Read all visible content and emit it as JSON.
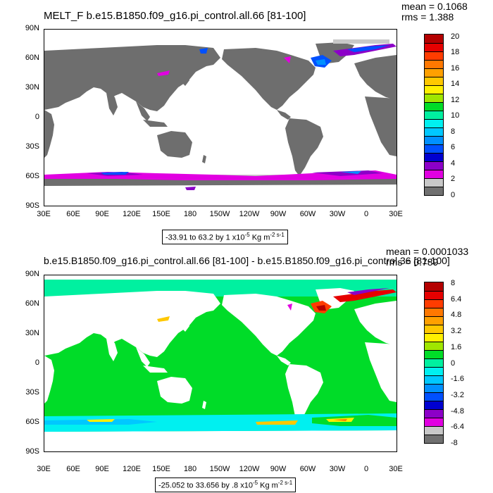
{
  "panel1": {
    "title": "MELT_F b.e15.B1850.f09_g16.pi_control.all.66 [81-100]",
    "mean": "mean = 0.1068",
    "rms": "rms = 1.388",
    "range_prefix": "-33.91 to 63.2 by 1 x10",
    "range_exp": "-5",
    "range_unit": " Kg m",
    "range_unit_exp": "-2 s-1",
    "colorbar_labels": [
      "20",
      "18",
      "16",
      "14",
      "12",
      "10",
      "8",
      "6",
      "4",
      "2",
      "0"
    ],
    "colors": [
      "#b40000",
      "#e60000",
      "#ff3c00",
      "#ff7800",
      "#ffa000",
      "#ffc800",
      "#fff000",
      "#a0e600",
      "#00dc28",
      "#00f0a0",
      "#00f0f0",
      "#00c8ff",
      "#0090ff",
      "#0050ff",
      "#0000d0",
      "#8c00c8",
      "#e100e1",
      "#c8c8c8",
      "#707070"
    ]
  },
  "panel2": {
    "title": "b.e15.B1850.f09_g16.pi_control.all.66 [81-100] - b.e15.B1850.f09_g16.pi_control.36 [81-100]",
    "mean": "mean = 0.0001033",
    "rms": "rms = 0.789",
    "range_prefix": "-25.052 to 33.656 by .8 x10",
    "range_exp": "-5",
    "range_unit": " Kg m",
    "range_unit_exp": "-2 s-1",
    "colorbar_labels": [
      "8",
      "6.4",
      "4.8",
      "3.2",
      "1.6",
      "0",
      "-1.6",
      "-3.2",
      "-4.8",
      "-6.4",
      "-8"
    ],
    "colors": [
      "#b40000",
      "#e60000",
      "#ff3c00",
      "#ff7800",
      "#ffa000",
      "#ffc800",
      "#fff000",
      "#a0e600",
      "#00dc28",
      "#00f0a0",
      "#00f0f0",
      "#00c8ff",
      "#0090ff",
      "#0050ff",
      "#0000d0",
      "#8c00c8",
      "#e100e1",
      "#c8c8c8",
      "#707070"
    ]
  },
  "lat_labels": [
    "90N",
    "60N",
    "30N",
    "0",
    "30S",
    "60S",
    "90S"
  ],
  "lon_labels": [
    "30E",
    "60E",
    "90E",
    "120E",
    "150E",
    "180",
    "150W",
    "120W",
    "90W",
    "60W",
    "30W",
    "0",
    "30E"
  ]
}
